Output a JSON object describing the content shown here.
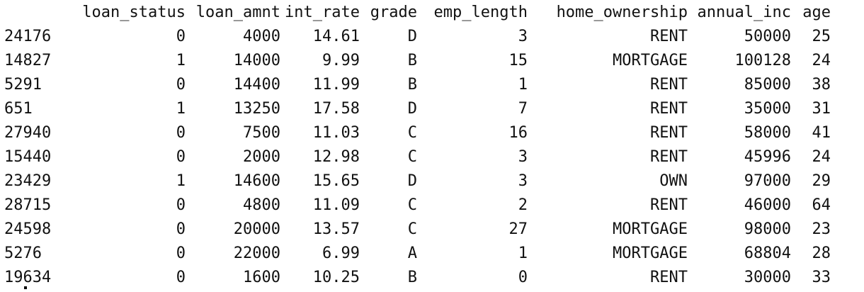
{
  "table": {
    "columns": [
      "loan_status",
      "loan_amnt",
      "int_rate",
      "grade",
      "emp_length",
      "home_ownership",
      "annual_inc",
      "age"
    ],
    "rows": [
      {
        "index": "24176",
        "cells": [
          "0",
          "4000",
          "14.61",
          "D",
          "3",
          "RENT",
          "50000",
          "25"
        ]
      },
      {
        "index": "14827",
        "cells": [
          "1",
          "14000",
          "9.99",
          "B",
          "15",
          "MORTGAGE",
          "100128",
          "24"
        ]
      },
      {
        "index": "5291",
        "cells": [
          "0",
          "14400",
          "11.99",
          "B",
          "1",
          "RENT",
          "85000",
          "38"
        ]
      },
      {
        "index": "651",
        "cells": [
          "1",
          "13250",
          "17.58",
          "D",
          "7",
          "RENT",
          "35000",
          "31"
        ]
      },
      {
        "index": "27940",
        "cells": [
          "0",
          "7500",
          "11.03",
          "C",
          "16",
          "RENT",
          "58000",
          "41"
        ]
      },
      {
        "index": "15440",
        "cells": [
          "0",
          "2000",
          "12.98",
          "C",
          "3",
          "RENT",
          "45996",
          "24"
        ]
      },
      {
        "index": "23429",
        "cells": [
          "1",
          "14600",
          "15.65",
          "D",
          "3",
          "OWN",
          "97000",
          "29"
        ]
      },
      {
        "index": "28715",
        "cells": [
          "0",
          "4800",
          "11.09",
          "C",
          "2",
          "RENT",
          "46000",
          "64"
        ]
      },
      {
        "index": "24598",
        "cells": [
          "0",
          "20000",
          "13.57",
          "C",
          "27",
          "MORTGAGE",
          "98000",
          "23"
        ]
      },
      {
        "index": "5276",
        "cells": [
          "0",
          "22000",
          "6.99",
          "A",
          "1",
          "MORTGAGE",
          "68804",
          "28"
        ]
      },
      {
        "index": "19634",
        "cells": [
          "0",
          "1600",
          "10.25",
          "B",
          "0",
          "RENT",
          "30000",
          "33"
        ]
      }
    ]
  }
}
